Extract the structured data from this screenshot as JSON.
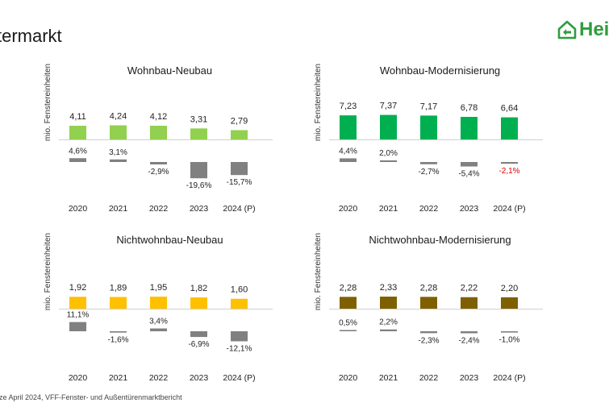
{
  "header": {
    "title_visible": "termarkt",
    "logo_text": "Hei"
  },
  "footnote": "nze April 2024, VFF-Fenster- und Außentürenmarktbericht",
  "colors": {
    "volume_negative_highlight": "#e00000",
    "change_bar": "#808080",
    "axis_line": "#d0d0d0",
    "logo": "#2e9e3e"
  },
  "chart_data": [
    {
      "type": "bar",
      "title": "Wohnbau-Neubau",
      "ylabel": "mio. Fenstereinheiten",
      "categories": [
        "2020",
        "2021",
        "2022",
        "2023",
        "2024 (P)"
      ],
      "bar_color": "#92d050",
      "series": [
        {
          "values": [
            4.11,
            4.24,
            4.12,
            3.31,
            2.79
          ],
          "labels": [
            "4,11",
            "4,24",
            "4,12",
            "3,31",
            "2,79"
          ]
        },
        {
          "values": [
            4.6,
            3.1,
            -2.9,
            -19.6,
            -15.7
          ],
          "labels": [
            "4,6%",
            "3,1%",
            "-2,9%",
            "-19,6%",
            "-15,7%"
          ],
          "highlight": [
            false,
            false,
            false,
            false,
            false
          ]
        }
      ]
    },
    {
      "type": "bar",
      "title": "Wohnbau-Modernisierung",
      "ylabel": "mio. Fenstereinheiten",
      "categories": [
        "2020",
        "2021",
        "2022",
        "2023",
        "2024 (P)"
      ],
      "bar_color": "#00b050",
      "series": [
        {
          "values": [
            7.23,
            7.37,
            7.17,
            6.78,
            6.64
          ],
          "labels": [
            "7,23",
            "7,37",
            "7,17",
            "6,78",
            "6,64"
          ]
        },
        {
          "values": [
            4.4,
            2.0,
            -2.7,
            -5.4,
            -2.1
          ],
          "labels": [
            "4,4%",
            "2,0%",
            "-2,7%",
            "-5,4%",
            "-2,1%"
          ],
          "highlight": [
            false,
            false,
            false,
            false,
            true
          ]
        }
      ]
    },
    {
      "type": "bar",
      "title": "Nichtwohnbau-Neubau",
      "ylabel": "mio. Fenstereinheiten",
      "categories": [
        "2020",
        "2021",
        "2022",
        "2023",
        "2024 (P)"
      ],
      "bar_color": "#ffc000",
      "series": [
        {
          "values": [
            1.92,
            1.89,
            1.95,
            1.82,
            1.6
          ],
          "labels": [
            "1,92",
            "1,89",
            "1,95",
            "1,82",
            "1,60"
          ]
        },
        {
          "values": [
            11.1,
            -1.6,
            3.4,
            -6.9,
            -12.1
          ],
          "labels": [
            "11,1%",
            "-1,6%",
            "3,4%",
            "-6,9%",
            "-12,1%"
          ],
          "highlight": [
            false,
            false,
            false,
            false,
            false
          ]
        }
      ]
    },
    {
      "type": "bar",
      "title": "Nichtwohnbau-Modernisierung",
      "ylabel": "mio. Fenstereinheiten",
      "categories": [
        "2020",
        "2021",
        "2022",
        "2023",
        "2024 (P)"
      ],
      "bar_color": "#7f6000",
      "series": [
        {
          "values": [
            2.28,
            2.33,
            2.28,
            2.22,
            2.2
          ],
          "labels": [
            "2,28",
            "2,33",
            "2,28",
            "2,22",
            "2,20"
          ]
        },
        {
          "values": [
            0.5,
            2.2,
            -2.3,
            -2.4,
            -1.0
          ],
          "labels": [
            "0,5%",
            "2,2%",
            "-2,3%",
            "-2,4%",
            "-1,0%"
          ],
          "highlight": [
            false,
            false,
            false,
            false,
            false
          ]
        }
      ]
    }
  ]
}
